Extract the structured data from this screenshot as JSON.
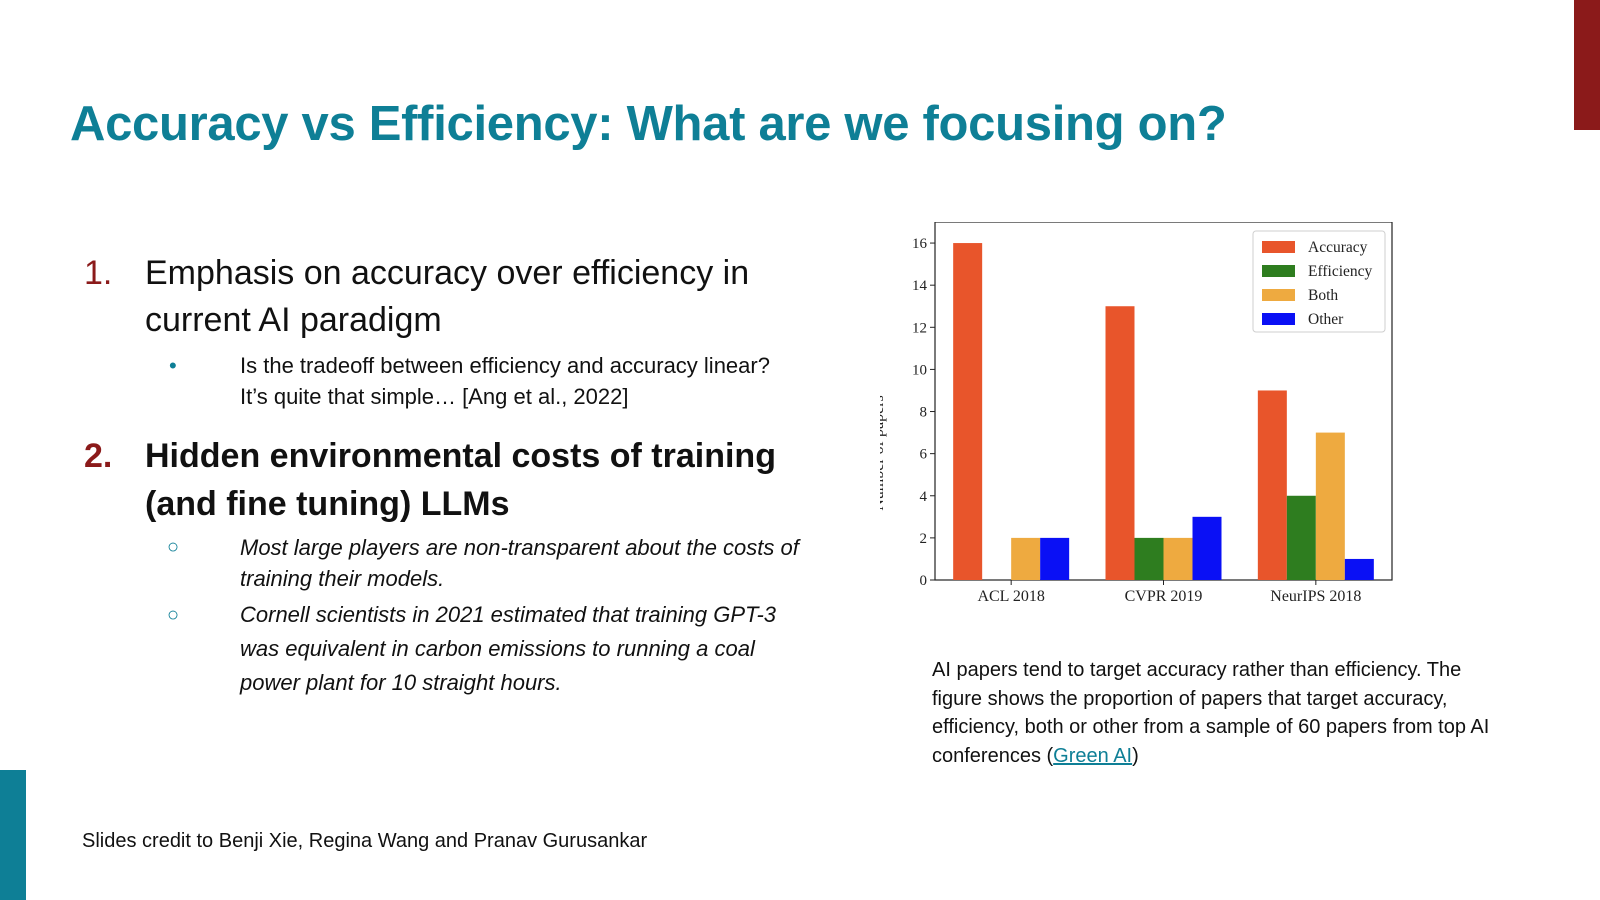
{
  "slide": {
    "title": "Accuracy vs Efficiency: What are we focusing on?",
    "credit": "Slides credit to Benji Xie, Regina Wang and Pranav Gurusankar",
    "accent_colors": {
      "teal": "#0e7f96",
      "red": "#8b1a1a"
    }
  },
  "points": [
    {
      "number": "1.",
      "text": "Emphasis on accuracy over efficiency in current AI paradigm",
      "sub": [
        {
          "bullet": "•",
          "text": "Is the tradeoff between efficiency and accuracy linear? It’s quite that simple… [Ang et al., 2022]"
        }
      ]
    },
    {
      "number": "2.",
      "text": "Hidden environmental costs of training (and fine tuning) LLMs",
      "sub": [
        {
          "bullet": "○",
          "text": "Most large players are non-transparent about the costs of training their models."
        },
        {
          "bullet": "○",
          "text": "Cornell scientists in 2021 estimated that training GPT-3 was equivalent in carbon emissions to running a coal power plant for 10 straight hours."
        }
      ]
    }
  ],
  "caption": {
    "text": "AI papers tend to target accuracy rather than efficiency. The figure shows the proportion of papers that target accuracy, efficiency, both or other from a sample of 60 papers from top AI conferences (",
    "link": "Green AI",
    "after": ")"
  },
  "chart_data": {
    "type": "bar",
    "categories": [
      "ACL 2018",
      "CVPR 2019",
      "NeurIPS 2018"
    ],
    "series": [
      {
        "name": "Accuracy",
        "color": "#e8552b",
        "values": [
          16,
          13,
          9
        ]
      },
      {
        "name": "Efficiency",
        "color": "#2e7d1f",
        "values": [
          0,
          2,
          4
        ]
      },
      {
        "name": "Both",
        "color": "#eeaa40",
        "values": [
          2,
          2,
          7
        ]
      },
      {
        "name": "Other",
        "color": "#0a10f5",
        "values": [
          2,
          3,
          1
        ]
      }
    ],
    "ylabel": "Number of papers",
    "ylim": [
      0,
      17
    ],
    "yticks": [
      0,
      2,
      4,
      6,
      8,
      10,
      12,
      14,
      16
    ],
    "legend": "top-right",
    "grid": false
  }
}
